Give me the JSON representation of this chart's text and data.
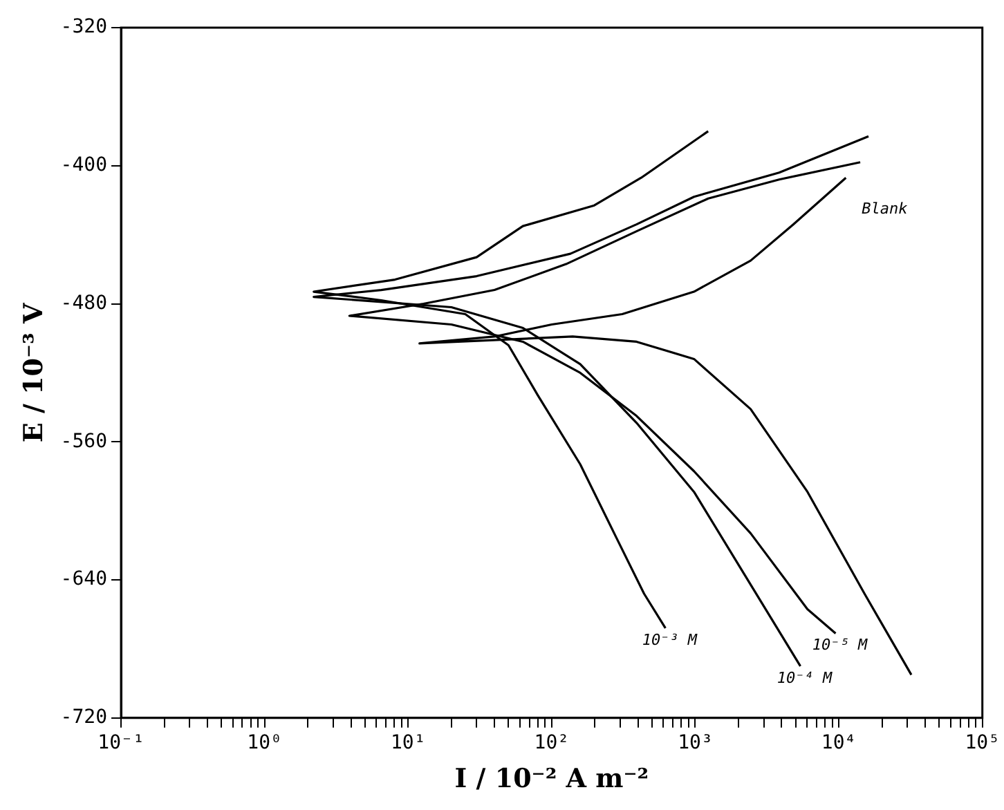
{
  "chart_data": {
    "type": "line",
    "xlabel": "I / 10⁻² A m⁻²",
    "ylabel": "E / 10⁻³ V",
    "log": "x",
    "grid": false,
    "legend": false,
    "marker": "none",
    "line_style": "solid",
    "xlim": [
      0.1,
      100000
    ],
    "ylim": [
      -720,
      -320
    ],
    "xticks": [
      {
        "value": 0.1,
        "label": "10⁻¹"
      },
      {
        "value": 0.2,
        "label": null
      },
      {
        "value": 0.3,
        "label": null
      },
      {
        "value": 0.4,
        "label": null
      },
      {
        "value": 0.5,
        "label": null
      },
      {
        "value": 0.6,
        "label": null
      },
      {
        "value": 0.7,
        "label": null
      },
      {
        "value": 0.8,
        "label": null
      },
      {
        "value": 0.9,
        "label": null
      },
      {
        "value": 1,
        "label": "10⁰"
      },
      {
        "value": 2,
        "label": null
      },
      {
        "value": 3,
        "label": null
      },
      {
        "value": 4,
        "label": null
      },
      {
        "value": 5,
        "label": null
      },
      {
        "value": 6,
        "label": null
      },
      {
        "value": 7,
        "label": null
      },
      {
        "value": 8,
        "label": null
      },
      {
        "value": 9,
        "label": null
      },
      {
        "value": 10,
        "label": "10¹"
      },
      {
        "value": 20,
        "label": null
      },
      {
        "value": 30,
        "label": null
      },
      {
        "value": 40,
        "label": null
      },
      {
        "value": 50,
        "label": null
      },
      {
        "value": 60,
        "label": null
      },
      {
        "value": 70,
        "label": null
      },
      {
        "value": 80,
        "label": null
      },
      {
        "value": 90,
        "label": null
      },
      {
        "value": 100,
        "label": "10²"
      },
      {
        "value": 200,
        "label": null
      },
      {
        "value": 300,
        "label": null
      },
      {
        "value": 400,
        "label": null
      },
      {
        "value": 500,
        "label": null
      },
      {
        "value": 600,
        "label": null
      },
      {
        "value": 700,
        "label": null
      },
      {
        "value": 800,
        "label": null
      },
      {
        "value": 900,
        "label": null
      },
      {
        "value": 1000,
        "label": "10³"
      },
      {
        "value": 2000,
        "label": null
      },
      {
        "value": 3000,
        "label": null
      },
      {
        "value": 4000,
        "label": null
      },
      {
        "value": 5000,
        "label": null
      },
      {
        "value": 6000,
        "label": null
      },
      {
        "value": 7000,
        "label": null
      },
      {
        "value": 8000,
        "label": null
      },
      {
        "value": 9000,
        "label": null
      },
      {
        "value": 10000,
        "label": "10⁴"
      },
      {
        "value": 20000,
        "label": null
      },
      {
        "value": 30000,
        "label": null
      },
      {
        "value": 40000,
        "label": null
      },
      {
        "value": 50000,
        "label": null
      },
      {
        "value": 60000,
        "label": null
      },
      {
        "value": 70000,
        "label": null
      },
      {
        "value": 80000,
        "label": null
      },
      {
        "value": 90000,
        "label": null
      },
      {
        "value": 100000,
        "label": "10⁵"
      }
    ],
    "yticks": [
      -720,
      -640,
      -560,
      -480,
      -400,
      -320
    ],
    "series": [
      {
        "name": "10⁻³ M",
        "color": "#000000",
        "x": [
          1230,
          420,
          198,
          63,
          30,
          8.1,
          2.2,
          6.5,
          25,
          50,
          80,
          158,
          280,
          440,
          620
        ],
        "values": [
          -380,
          -407,
          -423,
          -435,
          -453,
          -466,
          -473,
          -478,
          -486,
          -504,
          -533,
          -573,
          -615,
          -648,
          -668
        ]
      },
      {
        "name": "10⁻⁴ M",
        "color": "#000000",
        "x": [
          16100,
          3840,
          980,
          390,
          135,
          30,
          6.5,
          2.2,
          20,
          63,
          158,
          390,
          980,
          2170,
          5400
        ],
        "values": [
          -383,
          -404,
          -418,
          -434,
          -451,
          -464,
          -472,
          -476,
          -482,
          -494,
          -515,
          -549,
          -589,
          -636,
          -690
        ]
      },
      {
        "name": "10⁻⁵ M",
        "color": "#000000",
        "x": [
          14100,
          3840,
          1230,
          390,
          126,
          40,
          12.8,
          3.9,
          20,
          63,
          158,
          390,
          980,
          2430,
          6050,
          9500
        ],
        "values": [
          -398,
          -408,
          -419,
          -438,
          -457,
          -472,
          -480,
          -487,
          -492,
          -502,
          -520,
          -545,
          -577,
          -613,
          -657,
          -671
        ]
      },
      {
        "name": "Blank",
        "color": "#000000",
        "x": [
          32000,
          15100,
          6050,
          2430,
          980,
          390,
          140,
          12,
          40,
          100,
          310,
          980,
          2430,
          4820,
          11200
        ],
        "values": [
          -695,
          -648,
          -589,
          -541,
          -512,
          -502,
          -499,
          -503,
          -499,
          -492,
          -486,
          -473,
          -455,
          -434,
          -407
        ]
      }
    ]
  }
}
